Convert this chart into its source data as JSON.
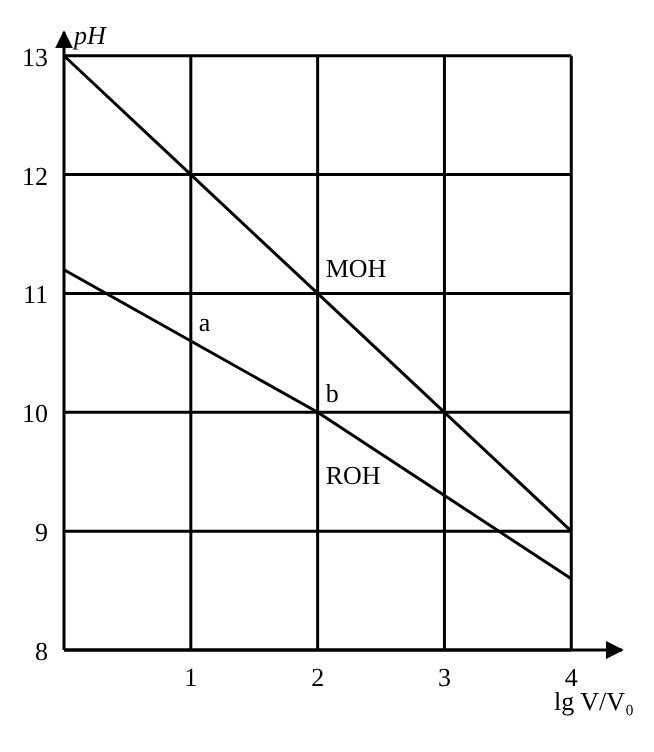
{
  "chart_data": {
    "type": "line",
    "xlabel": "lg V/V₀",
    "ylabel": "pH",
    "xlim": [
      0,
      4.4
    ],
    "ylim": [
      8,
      13.2
    ],
    "xticks": [
      1,
      2,
      3,
      4
    ],
    "yticks": [
      8,
      9,
      10,
      11,
      12,
      13
    ],
    "grid": true,
    "x": [
      0,
      1,
      2,
      3,
      4
    ],
    "series": [
      {
        "name": "MOH",
        "color": "#000000",
        "values": [
          13,
          12,
          11,
          10,
          9
        ]
      },
      {
        "name": "ROH",
        "color": "#000000",
        "values": [
          11.2,
          10.6,
          10,
          9.3,
          8.6
        ]
      }
    ],
    "annotations": [
      {
        "text": "a",
        "x": 1,
        "y": 10.6
      },
      {
        "text": "b",
        "x": 2,
        "y": 10
      }
    ]
  }
}
